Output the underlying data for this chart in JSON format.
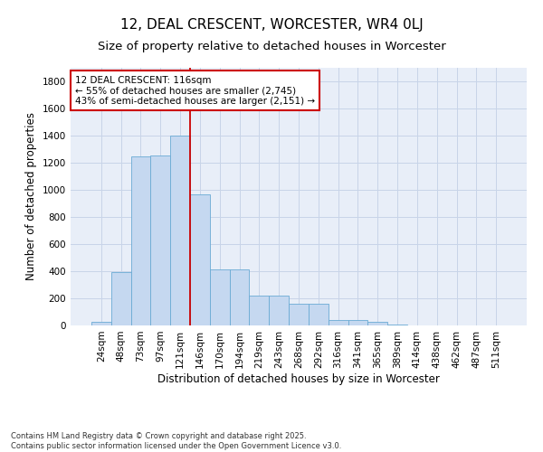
{
  "title_line1": "12, DEAL CRESCENT, WORCESTER, WR4 0LJ",
  "title_line2": "Size of property relative to detached houses in Worcester",
  "xlabel": "Distribution of detached houses by size in Worcester",
  "ylabel": "Number of detached properties",
  "categories": [
    "24sqm",
    "48sqm",
    "73sqm",
    "97sqm",
    "121sqm",
    "146sqm",
    "170sqm",
    "194sqm",
    "219sqm",
    "243sqm",
    "268sqm",
    "292sqm",
    "316sqm",
    "341sqm",
    "365sqm",
    "389sqm",
    "414sqm",
    "438sqm",
    "462sqm",
    "487sqm",
    "511sqm"
  ],
  "values": [
    25,
    395,
    1250,
    1255,
    1400,
    970,
    415,
    415,
    220,
    220,
    160,
    160,
    40,
    40,
    25,
    10,
    0,
    0,
    0,
    0,
    0
  ],
  "bar_color": "#c5d8f0",
  "bar_edge_color": "#6aaad4",
  "vline_x": 4.5,
  "vline_color": "#cc0000",
  "annotation_text": "12 DEAL CRESCENT: 116sqm\n← 55% of detached houses are smaller (2,745)\n43% of semi-detached houses are larger (2,151) →",
  "annotation_box_color": "#cc0000",
  "ylim": [
    0,
    1900
  ],
  "yticks": [
    0,
    200,
    400,
    600,
    800,
    1000,
    1200,
    1400,
    1600,
    1800
  ],
  "grid_color": "#c8d4e8",
  "background_color": "#e8eef8",
  "footer_text": "Contains HM Land Registry data © Crown copyright and database right 2025.\nContains public sector information licensed under the Open Government Licence v3.0.",
  "title_fontsize": 11,
  "subtitle_fontsize": 9.5,
  "axis_label_fontsize": 8.5,
  "tick_fontsize": 7.5,
  "annotation_fontsize": 7.5,
  "footer_fontsize": 6.0
}
